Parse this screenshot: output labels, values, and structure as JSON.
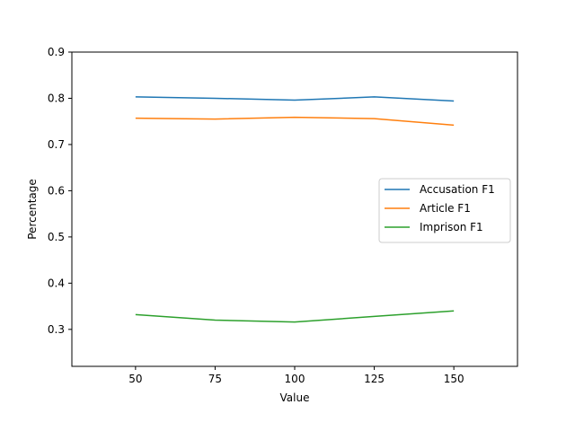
{
  "chart_data": {
    "type": "line",
    "title": "",
    "xlabel": "Value",
    "ylabel": "Percentage",
    "x": [
      50,
      75,
      100,
      125,
      150
    ],
    "xlim": [
      30,
      170
    ],
    "ylim": [
      0.22,
      0.9
    ],
    "xticks": [
      50,
      75,
      100,
      125,
      150
    ],
    "yticks": [
      0.3,
      0.4,
      0.5,
      0.6,
      0.7,
      0.8,
      0.9
    ],
    "ytick_labels": [
      "0.3",
      "0.4",
      "0.5",
      "0.6",
      "0.7",
      "0.8",
      "0.9"
    ],
    "grid": false,
    "legend_position": "center-right",
    "series": [
      {
        "name": "Accusation F1",
        "color": "#1f77b4",
        "values": [
          0.803,
          0.8,
          0.796,
          0.803,
          0.794
        ]
      },
      {
        "name": "Article F1",
        "color": "#ff7f0e",
        "values": [
          0.757,
          0.755,
          0.759,
          0.756,
          0.742
        ]
      },
      {
        "name": "Imprison F1",
        "color": "#2ca02c",
        "values": [
          0.332,
          0.32,
          0.316,
          0.328,
          0.34
        ]
      }
    ]
  }
}
